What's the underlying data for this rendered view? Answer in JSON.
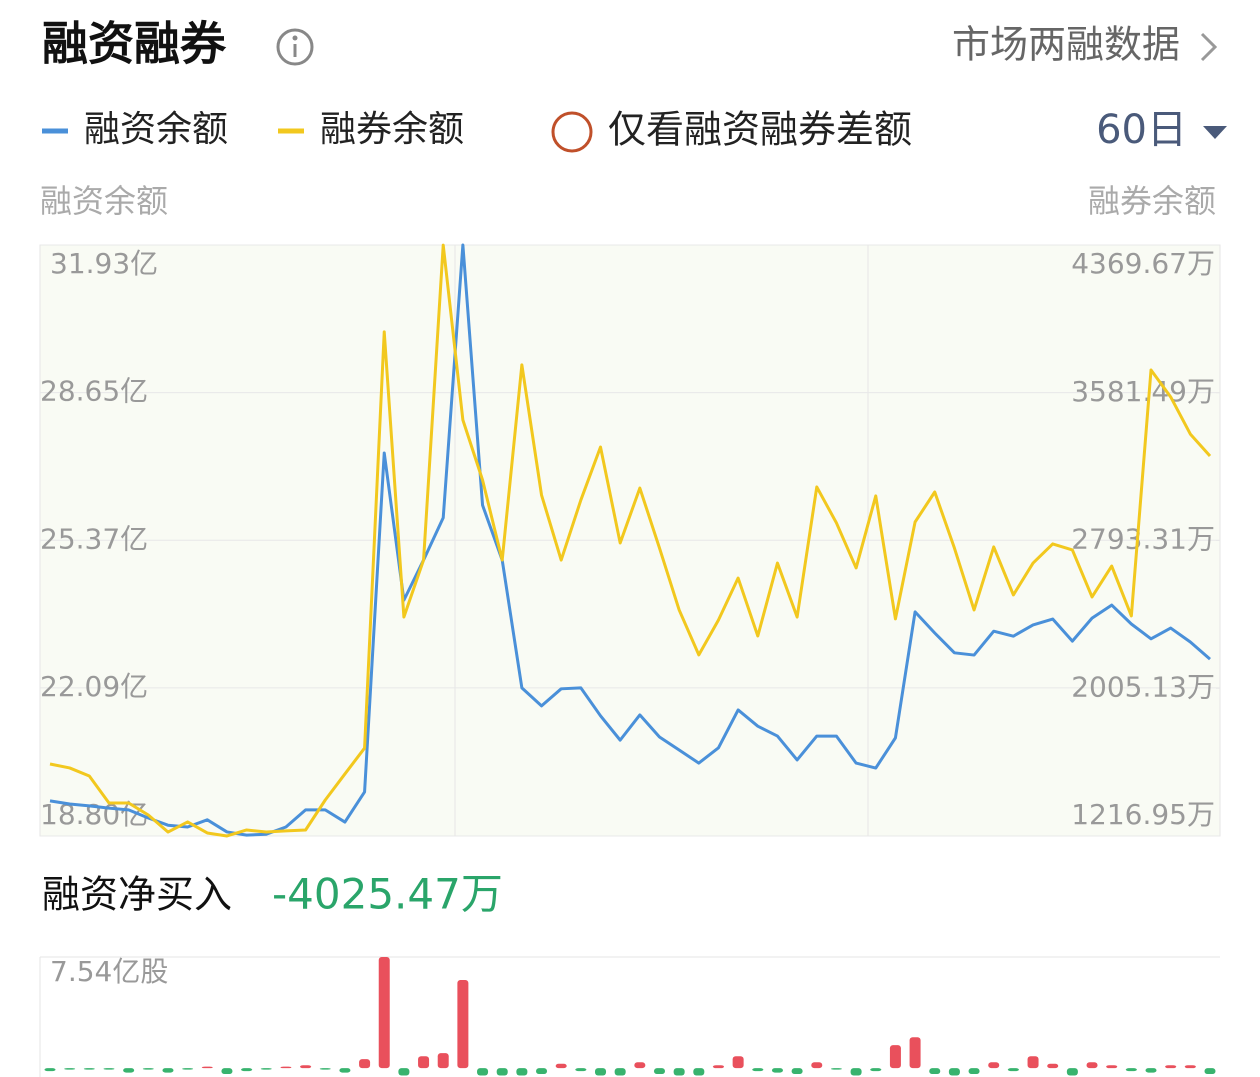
{
  "header": {
    "title": "融资融券",
    "link": "市场两融数据"
  },
  "controls": {
    "toggle": "仅看融资融券差额",
    "period": "60日"
  },
  "net_buy": {
    "label": "融资净买入",
    "value": "-4025.47万"
  },
  "chart_data": [
    {
      "type": "line",
      "ylabel": "融资余额",
      "y2label": "融券余额",
      "ylim": [
        18.8,
        31.93
      ],
      "yticks": [
        {
          "value": 18.8,
          "label": "18.80亿"
        },
        {
          "value": 22.09,
          "label": "22.09亿"
        },
        {
          "value": 25.37,
          "label": "25.37亿"
        },
        {
          "value": 28.65,
          "label": "28.65亿"
        },
        {
          "value": 31.93,
          "label": "31.93亿"
        }
      ],
      "y2lim": [
        1216.95,
        4369.67
      ],
      "y2ticks": [
        {
          "value": 1216.95,
          "label": "1216.95万"
        },
        {
          "value": 2005.13,
          "label": "2005.13万"
        },
        {
          "value": 2793.31,
          "label": "2793.31万"
        },
        {
          "value": 3581.49,
          "label": "3581.49万"
        },
        {
          "value": 4369.67,
          "label": "4369.67万"
        }
      ],
      "grid": true,
      "series": [
        {
          "name": "融资余额",
          "color": "#4a90d9",
          "values": [
            19.58,
            19.51,
            19.47,
            19.42,
            19.38,
            19.2,
            19.04,
            19.0,
            19.16,
            18.89,
            18.82,
            18.84,
            19.0,
            19.38,
            19.38,
            19.11,
            19.78,
            27.31,
            24.04,
            24.93,
            25.87,
            31.93,
            26.15,
            24.93,
            22.09,
            21.69,
            22.07,
            22.09,
            21.47,
            20.93,
            21.49,
            21.0,
            20.71,
            20.42,
            20.76,
            21.6,
            21.24,
            21.02,
            20.49,
            21.02,
            21.02,
            20.42,
            20.31,
            20.98,
            23.78,
            23.31,
            22.87,
            22.82,
            23.35,
            23.24,
            23.49,
            23.62,
            23.13,
            23.64,
            23.93,
            23.51,
            23.18,
            23.42,
            23.11,
            22.73
          ]
        },
        {
          "name": "融券余额",
          "color": "#f2c81e",
          "axis": "y2",
          "values": [
            1601,
            1580,
            1537,
            1393,
            1393,
            1329,
            1238,
            1292,
            1233,
            1217,
            1249,
            1238,
            1244,
            1249,
            1409,
            1548,
            1686,
            3906,
            2385,
            2689,
            4369,
            3436,
            3116,
            2689,
            3730,
            3036,
            2689,
            3009,
            3292,
            2780,
            3073,
            2753,
            2423,
            2183,
            2369,
            2593,
            2284,
            2673,
            2385,
            3079,
            2887,
            2647,
            3031,
            2375,
            2892,
            3052,
            2753,
            2423,
            2759,
            2503,
            2673,
            2775,
            2743,
            2492,
            2657,
            2391,
            3703,
            3559,
            3361,
            3244
          ]
        }
      ]
    },
    {
      "type": "bar",
      "ylim": [
        -0.6,
        7.54
      ],
      "yticks": [
        {
          "value": 7.54,
          "label": "7.54亿股"
        }
      ],
      "positive_color": "#e9505c",
      "negative_color": "#38b36e",
      "values": [
        -0.2,
        -0.1,
        -0.1,
        -0.1,
        -0.3,
        -0.1,
        -0.3,
        -0.1,
        0.1,
        -0.4,
        -0.2,
        -0.1,
        0.1,
        0.2,
        -0.1,
        -0.3,
        0.61,
        7.54,
        -0.5,
        0.81,
        1.02,
        5.98,
        -0.5,
        -0.5,
        -0.5,
        -0.4,
        0.3,
        -0.2,
        -0.5,
        -0.5,
        0.4,
        -0.4,
        -0.5,
        -0.5,
        0.2,
        0.81,
        -0.2,
        -0.3,
        -0.4,
        0.4,
        -0.1,
        -0.5,
        -0.2,
        1.56,
        2.1,
        -0.4,
        -0.5,
        -0.4,
        0.4,
        -0.2,
        0.81,
        0.3,
        -0.5,
        0.4,
        0.2,
        -0.2,
        -0.3,
        0.2,
        0.2,
        -0.4
      ]
    }
  ]
}
